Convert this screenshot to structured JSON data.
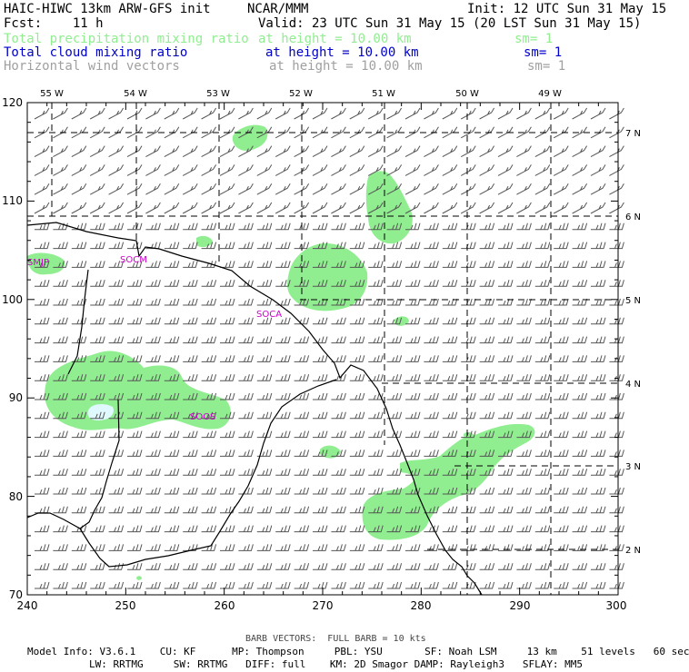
{
  "header": {
    "model": "HAIC-HIWC 13km ARW-GFS init",
    "org": "NCAR/MMM",
    "init": "Init: 12 UTC Sun 31 May 15",
    "fcst": "Fcst:    11 h",
    "valid": "Valid: 23 UTC Sun 31 May 15 (20 LST Sun 31 May 15)",
    "fields": [
      {
        "name": "Total precipitation mixing ratio",
        "height": "at height = 10.00 km",
        "sm": "sm= 1",
        "color": "#90ee90"
      },
      {
        "name": "Total cloud mixing ratio",
        "height": "at height = 10.00 km",
        "sm": "sm= 1",
        "color": "#0000cc"
      },
      {
        "name": "Horizontal wind vectors",
        "height": "at height = 10.00 km",
        "sm": "sm= 1",
        "color": "#a0a0a0"
      }
    ]
  },
  "map": {
    "x_ticks": [
      "240",
      "250",
      "260",
      "270",
      "280",
      "290",
      "300"
    ],
    "y_ticks": [
      "70",
      "80",
      "90",
      "100",
      "110",
      "120"
    ],
    "lon_labels": [
      "55 W",
      "54 W",
      "53 W",
      "52 W",
      "51 W",
      "50 W",
      "49 W"
    ],
    "lat_labels": [
      "7 N",
      "6 N",
      "5 N",
      "4 N",
      "3 N",
      "2 N"
    ],
    "station_labels": [
      "SMJP",
      "SOCM",
      "SOCA",
      "SOOS"
    ],
    "colors": {
      "precip": "#90ee90",
      "cloud_ice": "#e0f8ff",
      "barb": "#555555",
      "coast": "#000000",
      "station": "#cc00cc"
    }
  },
  "footer": {
    "barb_note": "BARB VECTORS:  FULL BARB = 10 kts",
    "line1": "Model Info: V3.6.1    CU: KF      MP: Thompson     PBL: YSU       SF: Noah LSM     13 km    51 levels   60 sec",
    "line2": "LW: RRTMG     SW: RRTMG   DIFF: full    KM: 2D Smagor DAMP: Rayleigh3   SFLAY: MM5"
  }
}
